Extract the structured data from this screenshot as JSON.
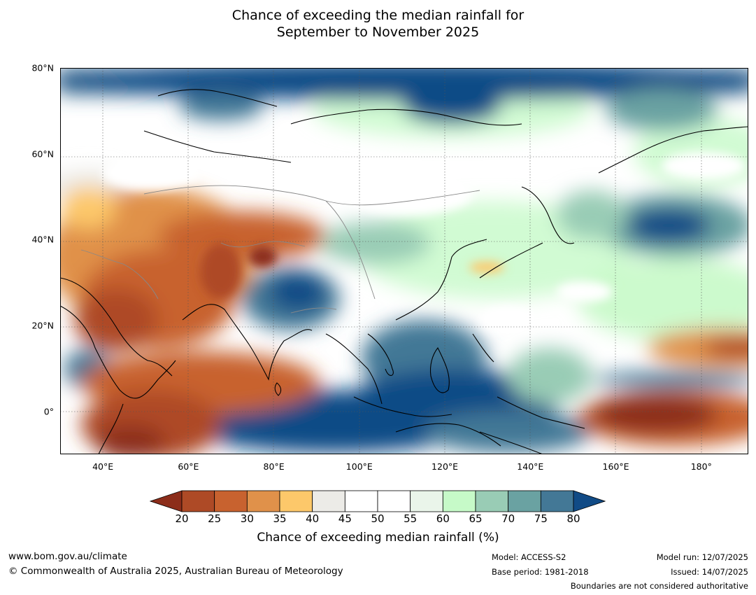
{
  "title": {
    "line1": "Chance of exceeding the median rainfall for",
    "line2": "September to November 2025"
  },
  "map": {
    "lat_range": [
      -10,
      80
    ],
    "lon_range": [
      30,
      191
    ],
    "lat_ticks": [
      {
        "value": 80,
        "label": "80°N"
      },
      {
        "value": 60,
        "label": "60°N"
      },
      {
        "value": 40,
        "label": "40°N"
      },
      {
        "value": 20,
        "label": "20°N"
      },
      {
        "value": 0,
        "label": "0°"
      }
    ],
    "lon_ticks": [
      {
        "value": 40,
        "label": "40°E"
      },
      {
        "value": 60,
        "label": "60°E"
      },
      {
        "value": 80,
        "label": "80°E"
      },
      {
        "value": 100,
        "label": "100°E"
      },
      {
        "value": 120,
        "label": "120°E"
      },
      {
        "value": 140,
        "label": "140°E"
      },
      {
        "value": 160,
        "label": "160°E"
      },
      {
        "value": 180,
        "label": "180°"
      }
    ]
  },
  "colorbar": {
    "ticks": [
      "20",
      "25",
      "30",
      "35",
      "40",
      "45",
      "50",
      "55",
      "60",
      "65",
      "70",
      "75",
      "80"
    ],
    "colors": [
      "#8c2d1a",
      "#ae4a26",
      "#c8622f",
      "#e0914a",
      "#fdc86a",
      "#ecebe7",
      "#ffffff",
      "#ffffff",
      "#eaf5ea",
      "#c6fac8",
      "#99ccb5",
      "#6aa2a2",
      "#437896",
      "#114b86"
    ],
    "label": "Chance of exceeding median rainfall (%)"
  },
  "footer": {
    "url": "www.bom.gov.au/climate",
    "copyright": "© Commonwealth of Australia 2025, Australian Bureau of Meteorology",
    "model": "Model: ACCESS-S2",
    "base_period": "Base period: 1981-2018",
    "model_run": "Model run: 12/07/2025",
    "issued": "Issued: 14/07/2025",
    "boundaries": "Boundaries are not considered authoritative"
  }
}
